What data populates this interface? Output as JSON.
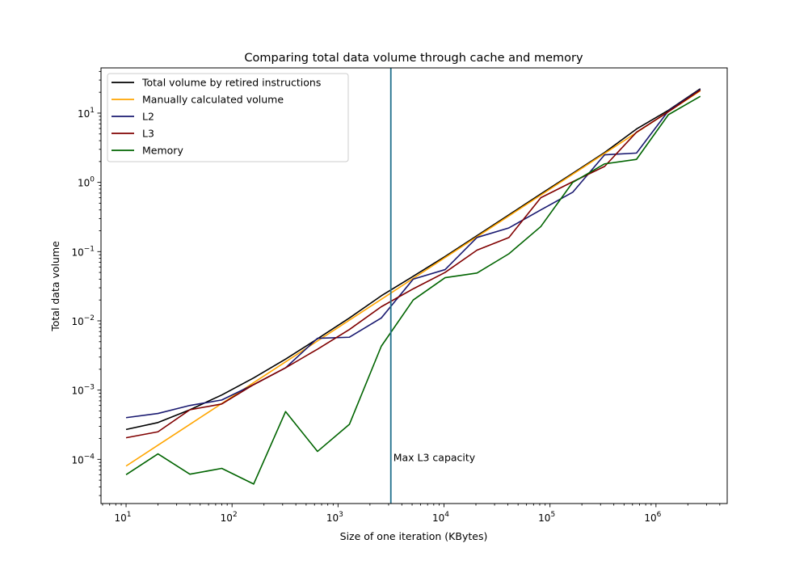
{
  "chart_data": {
    "type": "line",
    "title": "Comparing total data volume through cache and memory",
    "xlabel": "Size of one iteration (KBytes)",
    "ylabel": "Total data volume",
    "xscale": "log",
    "yscale": "log",
    "xlim": [
      5.8,
      4700000
    ],
    "ylim": [
      2.3e-05,
      45
    ],
    "x_ticks": [
      {
        "value": 10,
        "base": "10",
        "exp": "1"
      },
      {
        "value": 100,
        "base": "10",
        "exp": "2"
      },
      {
        "value": 1000,
        "base": "10",
        "exp": "3"
      },
      {
        "value": 10000,
        "base": "10",
        "exp": "4"
      },
      {
        "value": 100000,
        "base": "10",
        "exp": "5"
      },
      {
        "value": 1000000,
        "base": "10",
        "exp": "6"
      }
    ],
    "y_ticks": [
      {
        "value": 0.0001,
        "base": "10",
        "exp": "−4"
      },
      {
        "value": 0.001,
        "base": "10",
        "exp": "−3"
      },
      {
        "value": 0.01,
        "base": "10",
        "exp": "−2"
      },
      {
        "value": 0.1,
        "base": "10",
        "exp": "−1"
      },
      {
        "value": 1,
        "base": "10",
        "exp": "0"
      },
      {
        "value": 10,
        "base": "10",
        "exp": "1"
      }
    ],
    "grid": false,
    "legend_position": "upper-left",
    "x": [
      10,
      20,
      40,
      80,
      160,
      320,
      640,
      1280,
      2560,
      5120,
      10240,
      20480,
      40960,
      81920,
      163840,
      327680,
      655360,
      1310720,
      2621440
    ],
    "series": [
      {
        "name": "Total volume by retired instructions",
        "color": "#000000",
        "values": [
          0.00027,
          0.00034,
          0.00052,
          0.00085,
          0.0015,
          0.0028,
          0.0055,
          0.011,
          0.023,
          0.044,
          0.085,
          0.17,
          0.34,
          0.68,
          1.35,
          2.7,
          5.9,
          11.0,
          22.5
        ]
      },
      {
        "name": "Manually calculated volume",
        "color": "#ffa500",
        "values": [
          8e-05,
          0.00016,
          0.00032,
          0.00064,
          0.00128,
          0.00256,
          0.00512,
          0.01024,
          0.02048,
          0.04096,
          0.08192,
          0.16384,
          0.32768,
          0.65536,
          1.31,
          2.62,
          5.24,
          10.5,
          21.0
        ]
      },
      {
        "name": "L2",
        "color": "#191970",
        "values": [
          0.0004,
          0.00046,
          0.0006,
          0.00072,
          0.0012,
          0.0021,
          0.0056,
          0.0058,
          0.011,
          0.04,
          0.055,
          0.16,
          0.22,
          0.4,
          0.72,
          2.5,
          2.65,
          10.8,
          22.0
        ]
      },
      {
        "name": "L3",
        "color": "#800000",
        "values": [
          0.000205,
          0.00025,
          0.00052,
          0.00063,
          0.0012,
          0.0021,
          0.0039,
          0.0075,
          0.016,
          0.029,
          0.05,
          0.105,
          0.16,
          0.6,
          1.02,
          1.7,
          5.3,
          10.5,
          21.5
        ]
      },
      {
        "name": "Memory",
        "color": "#006400",
        "values": [
          6e-05,
          0.00012,
          6.1e-05,
          7.4e-05,
          4.4e-05,
          0.00049,
          0.00013,
          0.00032,
          0.0043,
          0.02,
          0.042,
          0.049,
          0.093,
          0.23,
          1.0,
          1.85,
          2.15,
          9.5,
          17.5
        ]
      }
    ],
    "vline": {
      "x": 3150,
      "color": "#1f6f8b",
      "label": "Max L3 capacity",
      "label_y": 0.000105
    }
  }
}
